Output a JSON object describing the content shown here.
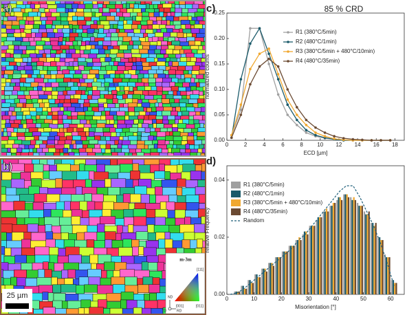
{
  "images": [
    {
      "label": "a)"
    },
    {
      "label": "b)",
      "scale_bar": "25 µm",
      "legend": {
        "title": "m-3m",
        "corners": [
          "[111]",
          "[001]",
          "[011]"
        ],
        "axes": [
          "ND",
          "TD",
          "RD"
        ]
      }
    }
  ],
  "chart_data": [
    {
      "type": "line",
      "label": "c)",
      "title": "85 % CRD",
      "x_label": "ECD [µm]",
      "y_label": "normalized counts",
      "x": [
        0.5,
        1.5,
        2.5,
        3.5,
        4.5,
        5.5,
        6.5,
        7.5,
        8.5,
        9.5,
        10.5,
        11.5,
        12.5,
        13.5,
        14.5,
        15.5,
        16.5,
        17.5
      ],
      "series": [
        {
          "name": "R1 (380°C/5min)",
          "color": "#a0a0a0",
          "values": [
            0.01,
            0.06,
            0.22,
            0.22,
            0.15,
            0.09,
            0.05,
            0.03,
            0.015,
            0.008,
            0.004,
            0.002,
            0,
            0,
            0,
            0,
            0,
            0
          ]
        },
        {
          "name": "R2 (480°C/1min)",
          "color": "#1a5a6a",
          "values": [
            0.005,
            0.12,
            0.19,
            0.22,
            0.17,
            0.12,
            0.07,
            0.04,
            0.02,
            0.01,
            0.005,
            0.002,
            0,
            0,
            0,
            0,
            0,
            0
          ]
        },
        {
          "name": "R3 (380°C/5min + 480°C/10min)",
          "color": "#f0a830",
          "values": [
            0.01,
            0.07,
            0.14,
            0.17,
            0.18,
            0.13,
            0.08,
            0.05,
            0.03,
            0.015,
            0.008,
            0.003,
            0.001,
            0,
            0,
            0,
            0,
            0
          ]
        },
        {
          "name": "R4 (480°C/35min)",
          "color": "#6b4a32",
          "values": [
            0.005,
            0.05,
            0.11,
            0.145,
            0.16,
            0.145,
            0.1,
            0.065,
            0.04,
            0.025,
            0.015,
            0.008,
            0.004,
            0.002,
            0.001,
            0,
            0,
            0
          ]
        }
      ],
      "xlim": [
        0,
        19
      ],
      "ylim": [
        0,
        0.25
      ],
      "xticks": [
        0,
        2,
        4,
        6,
        8,
        10,
        12,
        14,
        16,
        18
      ],
      "yticks": [
        {
          "value": 0,
          "label": "0.00"
        },
        0.05,
        {
          "value": 0.1,
          "label": "0.10"
        },
        0.15,
        {
          "value": 0.2,
          "label": "0.20"
        },
        0.25
      ],
      "legend": "upper right"
    },
    {
      "type": "bar",
      "label": "d)",
      "x_label": "Misorientation [°]",
      "y_label": "relative Frequency",
      "x": [
        1.25,
        3.75,
        6.25,
        8.75,
        11.25,
        13.75,
        16.25,
        18.75,
        21.25,
        23.75,
        26.25,
        28.75,
        31.25,
        33.75,
        36.25,
        38.75,
        41.25,
        43.75,
        46.25,
        48.75,
        51.25,
        53.75,
        56.25,
        58.75,
        61.25
      ],
      "series": [
        {
          "name": "R1 (380°C/5min)",
          "color": "#a0a0a0",
          "values": [
            0,
            0.001,
            0.003,
            0.005,
            0.007,
            0.009,
            0.011,
            0.013,
            0.015,
            0.017,
            0.019,
            0.021,
            0.024,
            0.026,
            0.029,
            0.031,
            0.033,
            0.035,
            0.034,
            0.032,
            0.029,
            0.025,
            0.02,
            0.014,
            0.005
          ]
        },
        {
          "name": "R2 (480°C/1min)",
          "color": "#1a5a6a",
          "values": [
            0,
            0.001,
            0.003,
            0.005,
            0.007,
            0.009,
            0.011,
            0.013,
            0.015,
            0.017,
            0.019,
            0.022,
            0.024,
            0.027,
            0.029,
            0.031,
            0.034,
            0.035,
            0.033,
            0.031,
            0.028,
            0.025,
            0.02,
            0.013,
            0.005
          ]
        },
        {
          "name": "R3 (380°C/5min + 480°C/10min)",
          "color": "#f0a830",
          "values": [
            0,
            0.001,
            0.002,
            0.004,
            0.006,
            0.009,
            0.011,
            0.013,
            0.015,
            0.017,
            0.02,
            0.022,
            0.024,
            0.027,
            0.03,
            0.032,
            0.034,
            0.035,
            0.034,
            0.031,
            0.028,
            0.024,
            0.019,
            0.013,
            0.004
          ]
        },
        {
          "name": "R4 (480°C/35min)",
          "color": "#6b4a32",
          "values": [
            0,
            0.001,
            0.002,
            0.004,
            0.006,
            0.008,
            0.01,
            0.013,
            0.015,
            0.017,
            0.019,
            0.021,
            0.024,
            0.027,
            0.029,
            0.032,
            0.033,
            0.034,
            0.033,
            0.031,
            0.029,
            0.025,
            0.019,
            0.013,
            0.004
          ]
        },
        {
          "name": "Random",
          "color": "#1f5f7a",
          "type": "line",
          "line_style": "dashed",
          "values": [
            0,
            0.0005,
            0.002,
            0.004,
            0.006,
            0.008,
            0.01,
            0.012,
            0.014,
            0.016,
            0.019,
            0.021,
            0.024,
            0.027,
            0.03,
            0.033,
            0.036,
            0.038,
            0.038,
            0.034,
            0.029,
            0.024,
            0.018,
            0.011,
            0.003
          ]
        }
      ],
      "xlim": [
        0,
        65
      ],
      "ylim": [
        0,
        0.045
      ],
      "xticks": [
        0,
        10,
        20,
        30,
        40,
        50,
        60
      ],
      "yticks": [
        {
          "value": 0,
          "label": "0.00"
        },
        0.02,
        0.04
      ],
      "legend": "upper left"
    }
  ]
}
